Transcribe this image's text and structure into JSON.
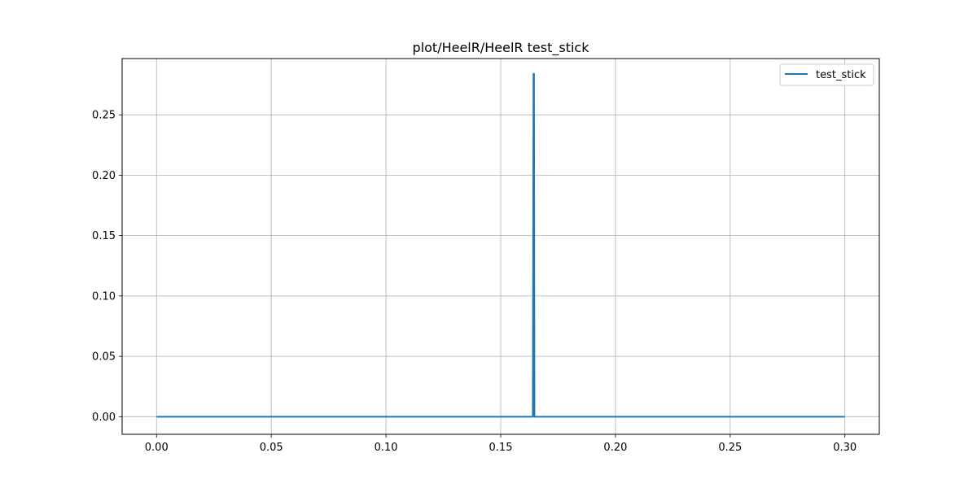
{
  "chart_data": {
    "type": "line",
    "title": "plot/HeelR/HeelR test_stick",
    "xlabel": "",
    "ylabel": "",
    "xlim": [
      -0.015,
      0.315
    ],
    "ylim": [
      -0.0146,
      0.2966
    ],
    "x_ticks": [
      0.0,
      0.05,
      0.1,
      0.15,
      0.2,
      0.25,
      0.3
    ],
    "x_tick_labels": [
      "0.00",
      "0.05",
      "0.10",
      "0.15",
      "0.20",
      "0.25",
      "0.30"
    ],
    "y_ticks": [
      0.0,
      0.05,
      0.1,
      0.15,
      0.2,
      0.25
    ],
    "y_tick_labels": [
      "0.00",
      "0.05",
      "0.10",
      "0.15",
      "0.20",
      "0.25"
    ],
    "grid": true,
    "legend_position": "top-right",
    "series": [
      {
        "name": "test_stick",
        "color": "#1f77b4",
        "x": [
          0.0,
          0.164,
          0.1643,
          0.1645,
          0.1647,
          0.3
        ],
        "y": [
          0.0,
          0.0,
          0.284,
          0.284,
          0.0,
          0.0
        ]
      }
    ]
  }
}
